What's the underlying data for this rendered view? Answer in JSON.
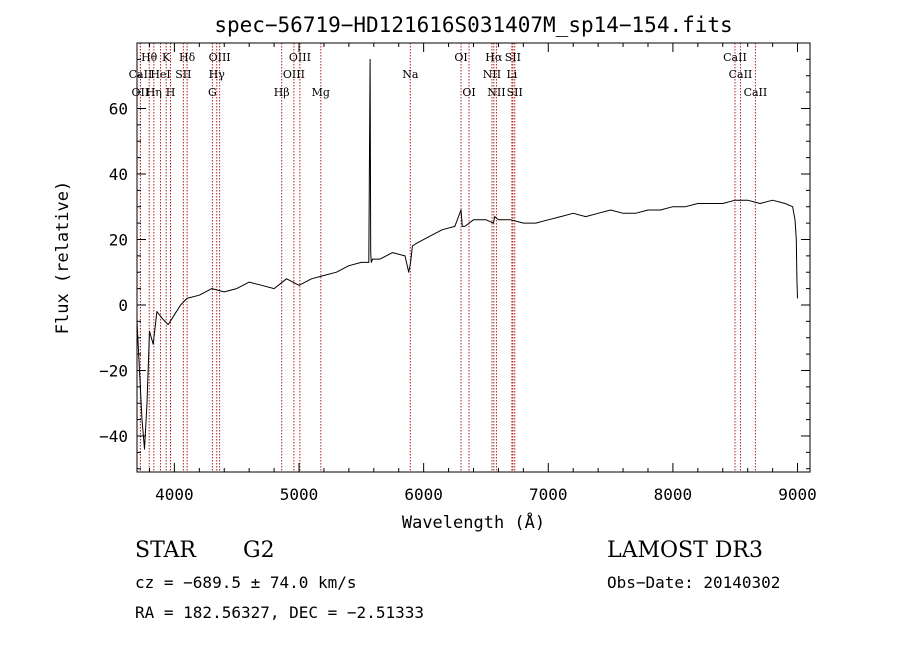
{
  "chart_data": {
    "type": "line",
    "title": "spec−56719−HD121616S031407M_sp14−154.fits",
    "xlabel": "Wavelength (Å)",
    "ylabel": "Flux (relative)",
    "xlim": [
      3700,
      9100
    ],
    "ylim": [
      -51,
      80
    ],
    "x_ticks": [
      4000,
      5000,
      6000,
      7000,
      8000,
      9000
    ],
    "x_tick_labels": [
      "4000",
      "5000",
      "6000",
      "7000",
      "8000",
      "9000"
    ],
    "y_ticks": [
      -40,
      -20,
      0,
      20,
      40,
      60
    ],
    "y_tick_labels": [
      "−40",
      "−20",
      "0",
      "20",
      "40",
      "60"
    ],
    "series": [
      {
        "name": "flux",
        "x": [
          3700,
          3740,
          3760,
          3780,
          3800,
          3830,
          3860,
          3900,
          3950,
          4000,
          4050,
          4100,
          4200,
          4300,
          4400,
          4500,
          4600,
          4700,
          4800,
          4900,
          5000,
          5100,
          5200,
          5300,
          5400,
          5500,
          5560,
          5570,
          5575,
          5580,
          5590,
          5650,
          5750,
          5850,
          5880,
          5895,
          5910,
          5950,
          6050,
          6150,
          6250,
          6300,
          6310,
          6330,
          6400,
          6500,
          6560,
          6570,
          6600,
          6700,
          6800,
          6900,
          7000,
          7100,
          7200,
          7300,
          7400,
          7500,
          7600,
          7700,
          7800,
          7900,
          8000,
          8100,
          8200,
          8300,
          8400,
          8500,
          8600,
          8700,
          8800,
          8900,
          8960,
          8980,
          8990,
          8995,
          9000
        ],
        "values": [
          -5,
          -35,
          -44,
          -30,
          -8,
          -12,
          -2,
          -4,
          -6,
          -3,
          0,
          2,
          3,
          5,
          4,
          5,
          7,
          6,
          5,
          8,
          6,
          8,
          9,
          10,
          12,
          13,
          13,
          75,
          16,
          13,
          14,
          14,
          16,
          15,
          10,
          13,
          18,
          19,
          21,
          23,
          24,
          29,
          24,
          24,
          26,
          26,
          25,
          27,
          26,
          26,
          25,
          25,
          26,
          27,
          28,
          27,
          28,
          29,
          28,
          28,
          29,
          29,
          30,
          30,
          31,
          31,
          31,
          32,
          32,
          31,
          32,
          31,
          30,
          26,
          20,
          8,
          2
        ]
      }
    ],
    "lines": [
      {
        "name": "Hθ",
        "wavelength": 3798,
        "row": 1
      },
      {
        "name": "CaII",
        "wavelength": 3728,
        "row": 2
      },
      {
        "name": "OII",
        "wavelength": 3727,
        "row": 3
      },
      {
        "name": "Hη",
        "wavelength": 3835,
        "row": 3
      },
      {
        "name": "K",
        "wavelength": 3934,
        "row": 1
      },
      {
        "name": "HeI",
        "wavelength": 3889,
        "row": 2
      },
      {
        "name": "H",
        "wavelength": 3969,
        "row": 3
      },
      {
        "name": "Hδ",
        "wavelength": 4102,
        "row": 1
      },
      {
        "name": "SII",
        "wavelength": 4072,
        "row": 2
      },
      {
        "name": "OIII",
        "wavelength": 4363,
        "row": 1
      },
      {
        "name": "Hγ",
        "wavelength": 4340,
        "row": 2
      },
      {
        "name": "G",
        "wavelength": 4305,
        "row": 3
      },
      {
        "name": "OIII",
        "wavelength": 5007,
        "row": 1
      },
      {
        "name": "OIII",
        "wavelength": 4959,
        "row": 2
      },
      {
        "name": "Hβ",
        "wavelength": 4861,
        "row": 3
      },
      {
        "name": "Mg",
        "wavelength": 5175,
        "row": 3
      },
      {
        "name": "Na",
        "wavelength": 5893,
        "row": 2
      },
      {
        "name": "OI",
        "wavelength": 6300,
        "row": 1
      },
      {
        "name": "OI",
        "wavelength": 6364,
        "row": 3
      },
      {
        "name": "Hα",
        "wavelength": 6563,
        "row": 1
      },
      {
        "name": "SII",
        "wavelength": 6716,
        "row": 1
      },
      {
        "name": "NII",
        "wavelength": 6548,
        "row": 2
      },
      {
        "name": "Li",
        "wavelength": 6708,
        "row": 2
      },
      {
        "name": "NII",
        "wavelength": 6584,
        "row": 3
      },
      {
        "name": "SII",
        "wavelength": 6731,
        "row": 3
      },
      {
        "name": "CaII",
        "wavelength": 8498,
        "row": 1
      },
      {
        "name": "CaII",
        "wavelength": 8542,
        "row": 2
      },
      {
        "name": "CaII",
        "wavelength": 8662,
        "row": 3
      }
    ]
  },
  "info": {
    "object_class": "STAR",
    "subclass": "G2",
    "survey": "LAMOST DR3",
    "redshift_line": "cz = −689.5 ± 74.0 km/s",
    "obs_date": "Obs−Date: 20140302",
    "coords": "RA = 182.56327, DEC =  −2.51333"
  },
  "colors": {
    "axis": "#000000",
    "spectrum": "#000000",
    "line_marker": "#b22222"
  }
}
